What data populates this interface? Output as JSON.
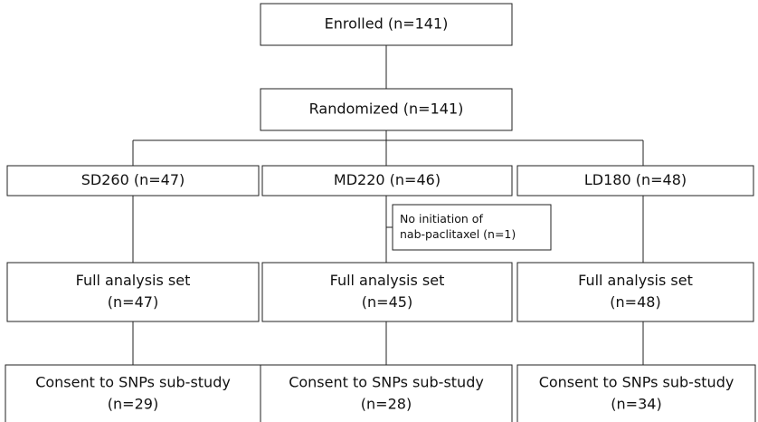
{
  "nodes": [
    {
      "lines": [
        "Enrolled (n=141)"
      ]
    },
    {
      "lines": [
        "Randomized (n=141)"
      ]
    },
    {
      "lines": [
        "SD260 (n=47)"
      ]
    },
    {
      "lines": [
        "MD220 (n=46)"
      ]
    },
    {
      "lines": [
        "LD180 (n=48)"
      ]
    },
    {
      "lines": [
        "No initiation of",
        "nab-paclitaxel (n=1)"
      ]
    },
    {
      "lines": [
        "Full analysis set",
        "(n=47)"
      ]
    },
    {
      "lines": [
        "Full analysis set",
        "(n=45)"
      ]
    },
    {
      "lines": [
        "Full analysis set",
        "(n=48)"
      ]
    },
    {
      "lines": [
        "Consent to SNPs sub-study",
        "(n=29)"
      ]
    },
    {
      "lines": [
        "Consent to SNPs sub-study",
        "(n=28)"
      ]
    },
    {
      "lines": [
        "Consent to SNPs sub-study",
        "(n=34)"
      ]
    }
  ]
}
